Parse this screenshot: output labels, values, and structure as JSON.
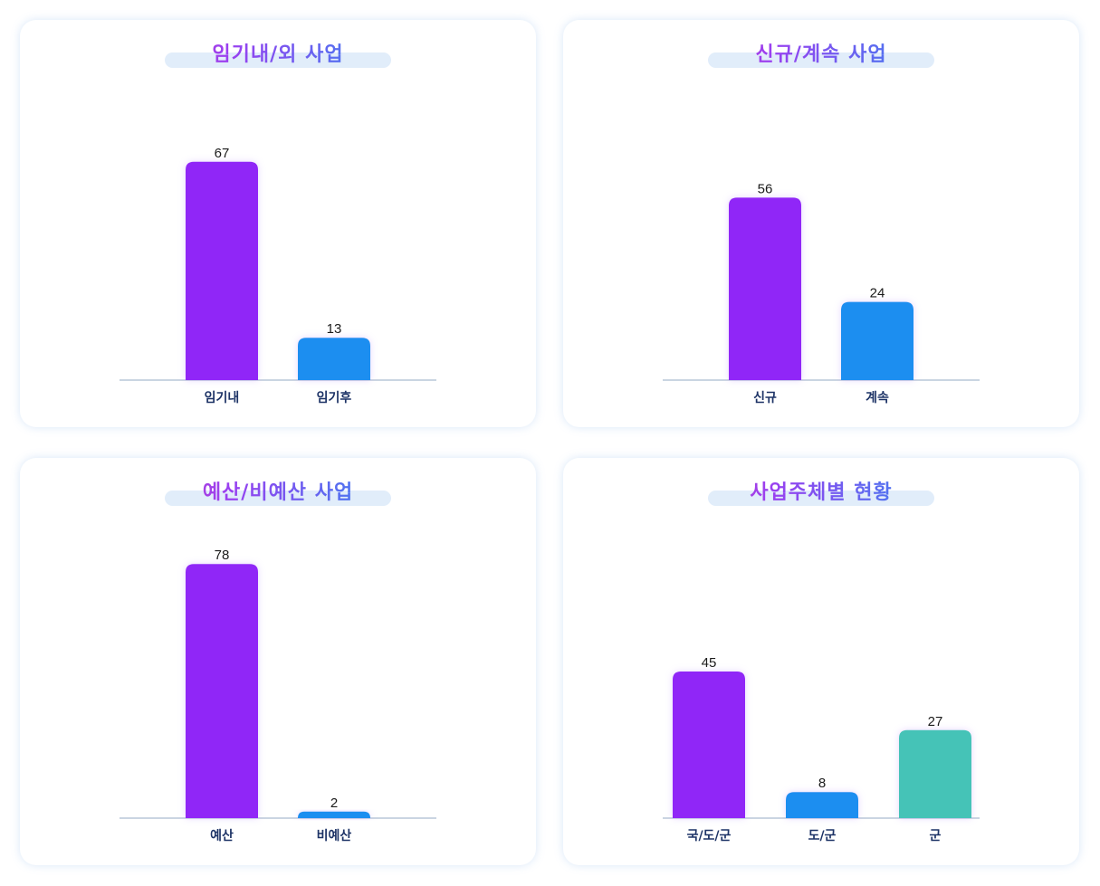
{
  "colors": {
    "bar_1": "#9027f7",
    "bar_2": "#1b8ef0",
    "bar_3": "#44c3b7",
    "axis": "#b9c7d8",
    "title_pill": "#e1edfa"
  },
  "chart_data": [
    {
      "type": "bar",
      "title": "임기내/외 사업",
      "categories": [
        "임기내",
        "임기후"
      ],
      "values": [
        67,
        13
      ],
      "ylim": [
        0,
        80
      ],
      "grid": false
    },
    {
      "type": "bar",
      "title": "신규/계속 사업",
      "categories": [
        "신규",
        "계속"
      ],
      "values": [
        56,
        24
      ],
      "ylim": [
        0,
        80
      ],
      "grid": false
    },
    {
      "type": "bar",
      "title": "예산/비예산 사업",
      "categories": [
        "예산",
        "비예산"
      ],
      "values": [
        78,
        2
      ],
      "ylim": [
        0,
        80
      ],
      "grid": false
    },
    {
      "type": "bar",
      "title": "사업주체별 현황",
      "categories": [
        "국/도/군",
        "도/군",
        "군"
      ],
      "values": [
        45,
        8,
        27
      ],
      "ylim": [
        0,
        80
      ],
      "grid": false
    }
  ]
}
